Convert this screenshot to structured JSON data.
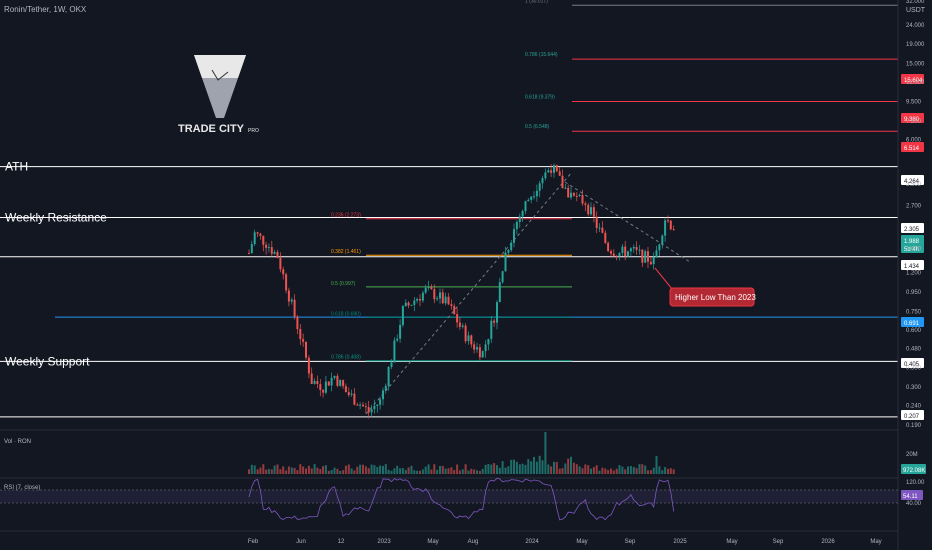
{
  "header": {
    "title": "Ronin/Tether, 1W, OKX",
    "currency": "USDT"
  },
  "logo": {
    "text": "TRADE CITY",
    "sub": "PRO"
  },
  "colors": {
    "bg": "#131722",
    "up": "#26a69a",
    "down": "#ef5350",
    "text": "#b2b5be",
    "white": "#ffffff",
    "blue": "#2196f3",
    "red": "#f23645",
    "orange": "#ff9800",
    "green": "#4caf50",
    "teal": "#00897b",
    "rsi": "#7e57c2"
  },
  "chart_data": {
    "type": "candlestick",
    "yscale": "log",
    "ylim": [
      0.19,
      32
    ],
    "y_ticks": [
      "32.000",
      "24.000",
      "19.000",
      "15.000",
      "12.000",
      "9.500",
      "7.500",
      "6.000",
      "3.500",
      "2.700",
      "1.600",
      "1.200",
      "0.950",
      "0.750",
      "0.600",
      "0.480",
      "0.380",
      "0.300",
      "0.240",
      "0.190"
    ],
    "x_ticks": [
      "Feb",
      "Jun",
      "12",
      "2023",
      "May",
      "Aug",
      "2024",
      "May",
      "Sep",
      "2025",
      "May",
      "Sep",
      "2026",
      "May"
    ],
    "horizontal_levels": [
      {
        "label": "ATH",
        "price": "4.264"
      },
      {
        "label": "Weekly Resistance",
        "price": "2.305"
      },
      {
        "label": "",
        "price": "1.434"
      },
      {
        "label": "",
        "price": "0.691"
      },
      {
        "label": "Weekly Support",
        "price": "0.405"
      },
      {
        "label": "",
        "price": "0.207"
      }
    ],
    "fib_lower": [
      {
        "label": "0.236 (2.273)"
      },
      {
        "label": "0.382 (1.461)"
      },
      {
        "label": "0.5 (0.997)"
      },
      {
        "label": "0.618 (0.690)"
      },
      {
        "label": "0.786 (0.408)"
      }
    ],
    "fib_upper": [
      {
        "label": "1 (30.017)"
      },
      {
        "label": "0.786 (15.644)"
      },
      {
        "label": "0.618 (9.379)"
      },
      {
        "label": "0.5 (6.548)"
      }
    ],
    "price_tags": [
      "15.604",
      "9.380",
      "6.514",
      "4.264",
      "2.305",
      "1.988",
      "5d 4h",
      "1.434",
      "0.691",
      "0.405",
      "0.207"
    ],
    "annotation": "Higher Low Than 2023",
    "volume": {
      "label": "Vol · RON",
      "ticks": [
        "20M"
      ],
      "last": "972.08K"
    },
    "rsi": {
      "label": "RSI (7, close)",
      "ticks": [
        "120.00",
        "40.00"
      ],
      "last": "54.11"
    }
  }
}
